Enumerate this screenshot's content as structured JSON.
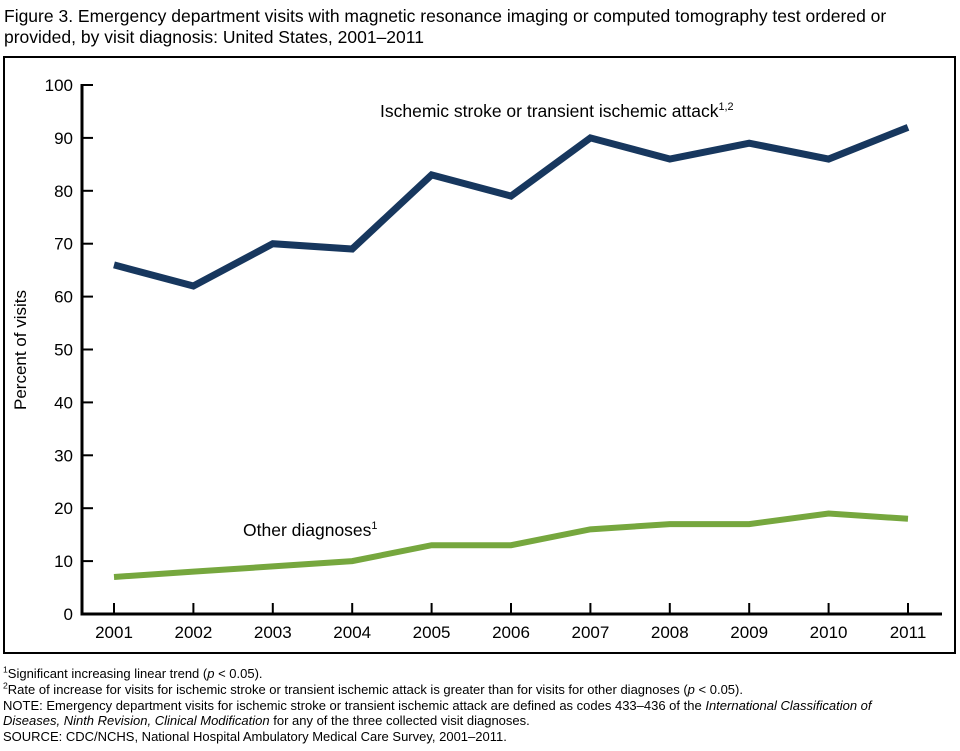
{
  "figure": {
    "title_line1": "Figure 3. Emergency department visits with magnetic resonance imaging or computed tomography test ordered or",
    "title_line2": "provided, by visit diagnosis: United States, 2001–2011"
  },
  "chart_data": {
    "type": "line",
    "title": "Emergency department visits with magnetic resonance imaging or computed tomography test ordered or provided, by visit diagnosis: United States, 2001–2011",
    "xlabel": "",
    "ylabel": "Percent of visits",
    "ylim": [
      0,
      100
    ],
    "ytick_step": 10,
    "grid": false,
    "legend_position": "inline-labels",
    "categories": [
      "2001",
      "2002",
      "2003",
      "2004",
      "2005",
      "2006",
      "2007",
      "2008",
      "2009",
      "2010",
      "2011"
    ],
    "series": [
      {
        "name": "Ischemic stroke or transient ischemic attack",
        "label_sup": "1,2",
        "color": "#17375e",
        "stroke_width": 7,
        "values": [
          66,
          62,
          70,
          69,
          83,
          79,
          90,
          86,
          89,
          86,
          92
        ]
      },
      {
        "name": "Other diagnoses",
        "label_sup": "1",
        "color": "#76a73e",
        "stroke_width": 6,
        "values": [
          7,
          8,
          9,
          10,
          13,
          13,
          16,
          17,
          17,
          19,
          18
        ]
      }
    ]
  },
  "footnotes": [
    {
      "sup": "1",
      "pre": "Significant increasing linear trend (",
      "italic": "p",
      "post": " < 0.05)."
    },
    {
      "sup": "2",
      "pre": "Rate of increase for visits for ischemic stroke or transient ischemic attack is greater than for visits for other diagnoses (",
      "italic": "p",
      "post": " < 0.05)."
    },
    {
      "sup": "",
      "pre": "NOTE: Emergency department visits for ischemic stroke or transient ischemic attack are defined as codes 433–436 of the ",
      "italic": "International Classification of Diseases, Ninth Revision, Clinical Modification",
      "post": " for any of the three collected visit diagnoses."
    },
    {
      "sup": "",
      "pre": "SOURCE: CDC/NCHS, National Hospital Ambulatory Medical Care Survey, 2001–2011.",
      "italic": "",
      "post": ""
    }
  ]
}
